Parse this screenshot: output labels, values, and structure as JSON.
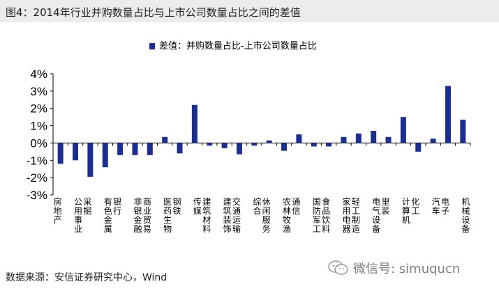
{
  "header": {
    "title": "图4：2014年行业并购数量占比与上市公司数量占比之间的差值"
  },
  "footer": {
    "source": "数据来源：安信证券研究中心，Wind"
  },
  "watermark": {
    "text": "微信号: simuqucn",
    "icon": "wechat-icon"
  },
  "colors": {
    "bar": "#1c2f8e",
    "axis": "#000000",
    "text": "#000000"
  },
  "chart_data": {
    "type": "bar",
    "title": "",
    "xlabel": "",
    "ylabel": "",
    "ylim": [
      -3,
      4
    ],
    "yticks": [
      "4%",
      "3%",
      "2%",
      "1%",
      "0%",
      "-1%",
      "-2%",
      "-3%"
    ],
    "legend": {
      "position": "top-center",
      "label": "差值：并购数量占比-上市公司数量占比"
    },
    "categories": [
      "房地产",
      "公用事业",
      "采掘",
      "有色金属",
      "银行",
      "非银金融",
      "商业贸易",
      "医药生物",
      "钢铁",
      "传媒",
      "建筑材料",
      "建筑装饰",
      "交通运输",
      "综合",
      "休闲服务",
      "农林牧渔",
      "通信",
      "国防军工",
      "食品饮料",
      "家用电器",
      "轻工制造",
      "电气设备",
      "里装",
      "计算机",
      "化工",
      "汽车",
      "电子",
      "机械设备"
    ],
    "series": [
      {
        "name": "差值：并购数量占比-上市公司数量占比",
        "values": [
          -1.2,
          -1.0,
          -1.95,
          -1.4,
          -0.7,
          -0.7,
          -0.7,
          0.35,
          -0.6,
          2.2,
          -0.15,
          -0.3,
          -0.65,
          -0.15,
          0.15,
          -0.45,
          0.5,
          -0.2,
          -0.2,
          0.35,
          0.55,
          0.7,
          0.35,
          1.5,
          -0.5,
          0.25,
          3.3,
          1.35
        ]
      }
    ]
  }
}
